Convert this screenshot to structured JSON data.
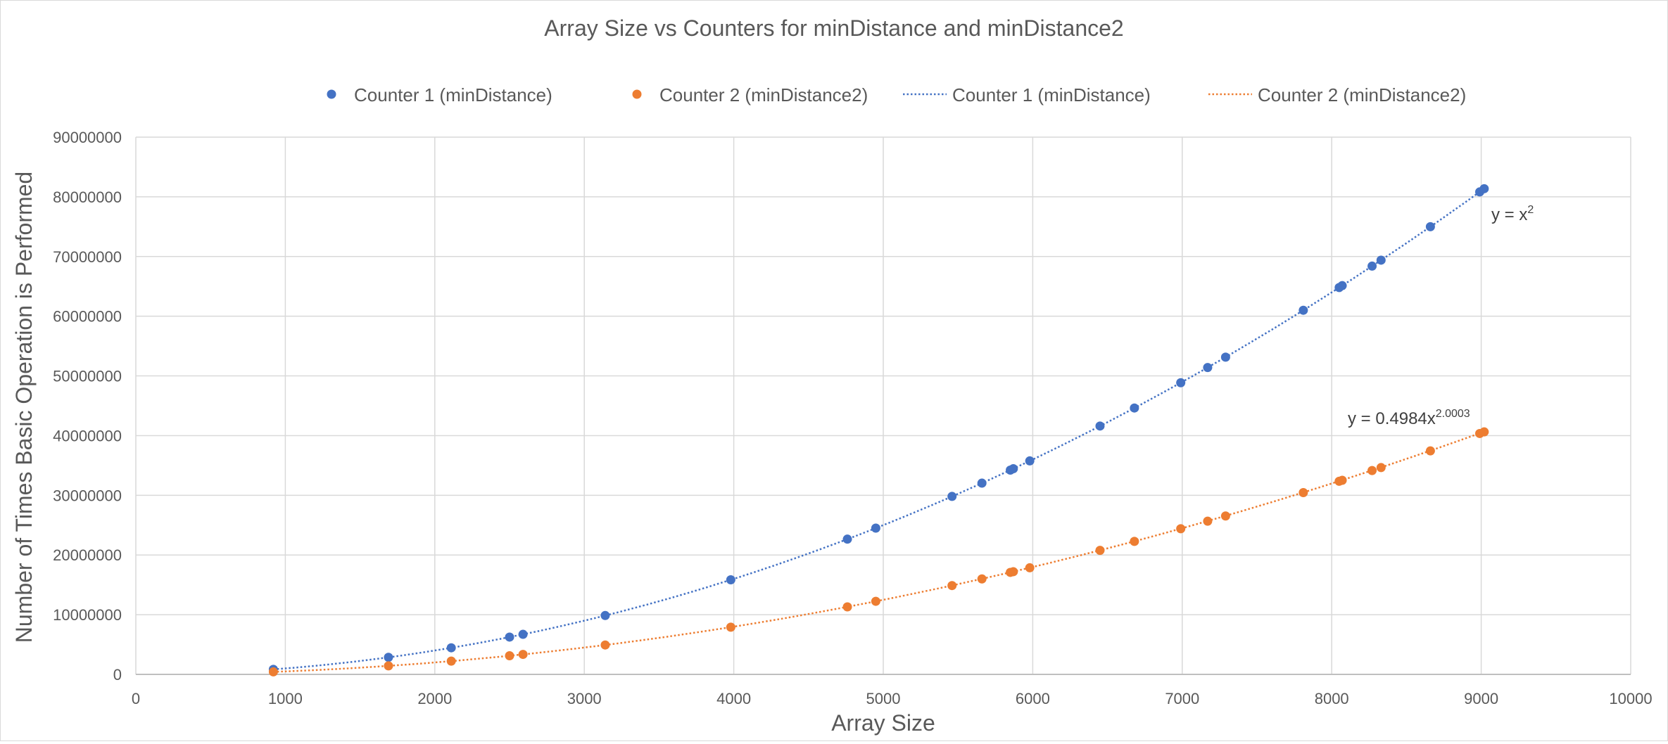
{
  "chart_data": {
    "type": "scatter",
    "title": "Array Size vs Counters for minDistance and minDistance2",
    "xlabel": "Array Size",
    "ylabel": "Number of Times Basic Operation is Performed",
    "xlim": [
      0,
      10000
    ],
    "ylim": [
      0,
      90000000
    ],
    "x_ticks": [
      0,
      1000,
      2000,
      3000,
      4000,
      5000,
      6000,
      7000,
      8000,
      9000,
      10000
    ],
    "y_ticks": [
      0,
      10000000,
      20000000,
      30000000,
      40000000,
      50000000,
      60000000,
      70000000,
      80000000,
      90000000
    ],
    "grid": true,
    "legend_position": "top",
    "legend": [
      {
        "label": "Counter 1 (minDistance)",
        "kind": "marker",
        "color": "#4472C4"
      },
      {
        "label": "Counter 2 (minDistance2)",
        "kind": "marker",
        "color": "#ED7D31"
      },
      {
        "label": "Counter 1 (minDistance)",
        "kind": "dotted-line",
        "color": "#4472C4"
      },
      {
        "label": "Counter 2 (minDistance2)",
        "kind": "dotted-line",
        "color": "#ED7D31"
      }
    ],
    "series": [
      {
        "name": "Counter 1 (minDistance)",
        "color": "#4472C4",
        "x": [
          920,
          1690,
          2110,
          2500,
          2590,
          3140,
          3980,
          4760,
          4950,
          5460,
          5660,
          5850,
          5870,
          5980,
          6450,
          6680,
          6990,
          7170,
          7290,
          7810,
          8050,
          8070,
          8270,
          8330,
          8660,
          8990,
          9020
        ],
        "y": [
          846400,
          2856100,
          4452100,
          6250000,
          6708100,
          9859600,
          15840400,
          22657600,
          24502500,
          29811600,
          32035600,
          34222500,
          34456900,
          35760400,
          41602500,
          44622400,
          48860100,
          51408900,
          53144100,
          60996100,
          64802500,
          65124900,
          68392900,
          69388900,
          74995600,
          80820100,
          81360400
        ]
      },
      {
        "name": "Counter 2 (minDistance2)",
        "color": "#ED7D31",
        "x": [
          920,
          1690,
          2110,
          2500,
          2590,
          3140,
          3980,
          4760,
          4950,
          5460,
          5660,
          5850,
          5870,
          5980,
          6450,
          6680,
          6990,
          7170,
          7290,
          7810,
          8050,
          8070,
          8270,
          8330,
          8660,
          8990,
          9020
        ],
        "y": [
          422740,
          1425623,
          2222424,
          3120000,
          3348700,
          4922820,
          7910320,
          11311850,
          12242250,
          14879420,
          15992230,
          17087580,
          17205240,
          17854270,
          20773250,
          22279280,
          24397780,
          25667030,
          26533260,
          30451980,
          32354100,
          32514440,
          34146460,
          34643700,
          37441440,
          40351900,
          40621300
        ]
      }
    ],
    "trendlines": [
      {
        "series": "Counter 1 (minDistance)",
        "style": "dotted",
        "color": "#4472C4",
        "coef": 1.0,
        "exp": 2.0,
        "label": "y = x",
        "label_sup": "2"
      },
      {
        "series": "Counter 2 (minDistance2)",
        "style": "dotted",
        "color": "#ED7D31",
        "coef": 0.4984,
        "exp": 2.0003,
        "label": "y = 0.4984x",
        "label_sup": "2.0003"
      }
    ]
  }
}
